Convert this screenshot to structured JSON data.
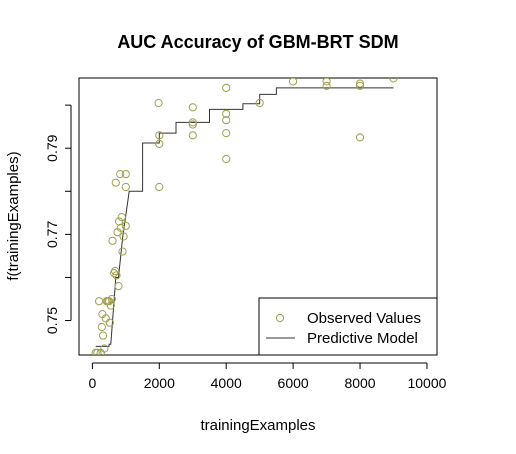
{
  "chart_data": {
    "type": "scatter",
    "title": "AUC Accuracy of GBM-BRT SDM",
    "xlabel": "trainingExamples",
    "ylabel": "f(trainingExamples)",
    "xlim": [
      -400,
      10300
    ],
    "ylim": [
      0.742,
      0.8063
    ],
    "xticks": [
      0,
      2000,
      4000,
      6000,
      8000,
      10000
    ],
    "xtick_labels": [
      "0",
      "2000",
      "4000",
      "6000",
      "8000",
      "10000"
    ],
    "yticks": [
      0.75,
      0.77,
      0.79
    ],
    "ytick_labels": [
      "0.75",
      "0.77",
      "0.79"
    ],
    "yticks_minor": [
      0.76,
      0.78,
      0.8
    ],
    "grid": false,
    "legend": {
      "position": "bottom-right",
      "entries": [
        "Observed Values",
        "Predictive Model"
      ]
    },
    "colors": {
      "points": "#9e9e4e",
      "line": "#333333",
      "frame": "#000000"
    },
    "series": [
      {
        "name": "Observed Values",
        "kind": "points",
        "points": [
          [
            100,
            0.7425
          ],
          [
            150,
            0.7425
          ],
          [
            200,
            0.7545
          ],
          [
            250,
            0.7425
          ],
          [
            280,
            0.7485
          ],
          [
            300,
            0.7515
          ],
          [
            320,
            0.7465
          ],
          [
            360,
            0.7435
          ],
          [
            400,
            0.7505
          ],
          [
            430,
            0.7545
          ],
          [
            460,
            0.7545
          ],
          [
            500,
            0.7545
          ],
          [
            520,
            0.7495
          ],
          [
            550,
            0.7535
          ],
          [
            580,
            0.755
          ],
          [
            600,
            0.7685
          ],
          [
            650,
            0.761
          ],
          [
            680,
            0.7615
          ],
          [
            700,
            0.782
          ],
          [
            720,
            0.7605
          ],
          [
            750,
            0.7705
          ],
          [
            780,
            0.758
          ],
          [
            800,
            0.773
          ],
          [
            830,
            0.784
          ],
          [
            850,
            0.7715
          ],
          [
            880,
            0.774
          ],
          [
            900,
            0.766
          ],
          [
            930,
            0.7695
          ],
          [
            1000,
            0.781
          ],
          [
            1000,
            0.784
          ],
          [
            1000,
            0.772
          ],
          [
            1980,
            0.8005
          ],
          [
            2000,
            0.793
          ],
          [
            2000,
            0.791
          ],
          [
            2000,
            0.781
          ],
          [
            3000,
            0.7995
          ],
          [
            3000,
            0.796
          ],
          [
            3000,
            0.7955
          ],
          [
            3000,
            0.793
          ],
          [
            4000,
            0.804
          ],
          [
            4000,
            0.798
          ],
          [
            4000,
            0.7965
          ],
          [
            4000,
            0.7935
          ],
          [
            4000,
            0.7875
          ],
          [
            5000,
            0.8005
          ],
          [
            6000,
            0.8055
          ],
          [
            7000,
            0.8055
          ],
          [
            7000,
            0.8045
          ],
          [
            8000,
            0.805
          ],
          [
            8000,
            0.8045
          ],
          [
            8000,
            0.7925
          ],
          [
            9000,
            0.8062
          ]
        ]
      },
      {
        "name": "Predictive Model",
        "kind": "step-line",
        "points": [
          [
            100,
            0.744
          ],
          [
            500,
            0.744
          ],
          [
            500,
            0.7445
          ],
          [
            550,
            0.7445
          ],
          [
            700,
            0.76
          ],
          [
            780,
            0.76
          ],
          [
            900,
            0.769
          ],
          [
            1100,
            0.78
          ],
          [
            1500,
            0.78
          ],
          [
            1500,
            0.7912
          ],
          [
            2000,
            0.7912
          ],
          [
            2000,
            0.7935
          ],
          [
            2500,
            0.7935
          ],
          [
            2500,
            0.796
          ],
          [
            3500,
            0.796
          ],
          [
            3500,
            0.799
          ],
          [
            4500,
            0.799
          ],
          [
            4500,
            0.8003
          ],
          [
            5000,
            0.8003
          ],
          [
            5000,
            0.8025
          ],
          [
            5500,
            0.8025
          ],
          [
            5500,
            0.804
          ],
          [
            9000,
            0.804
          ]
        ]
      }
    ]
  }
}
